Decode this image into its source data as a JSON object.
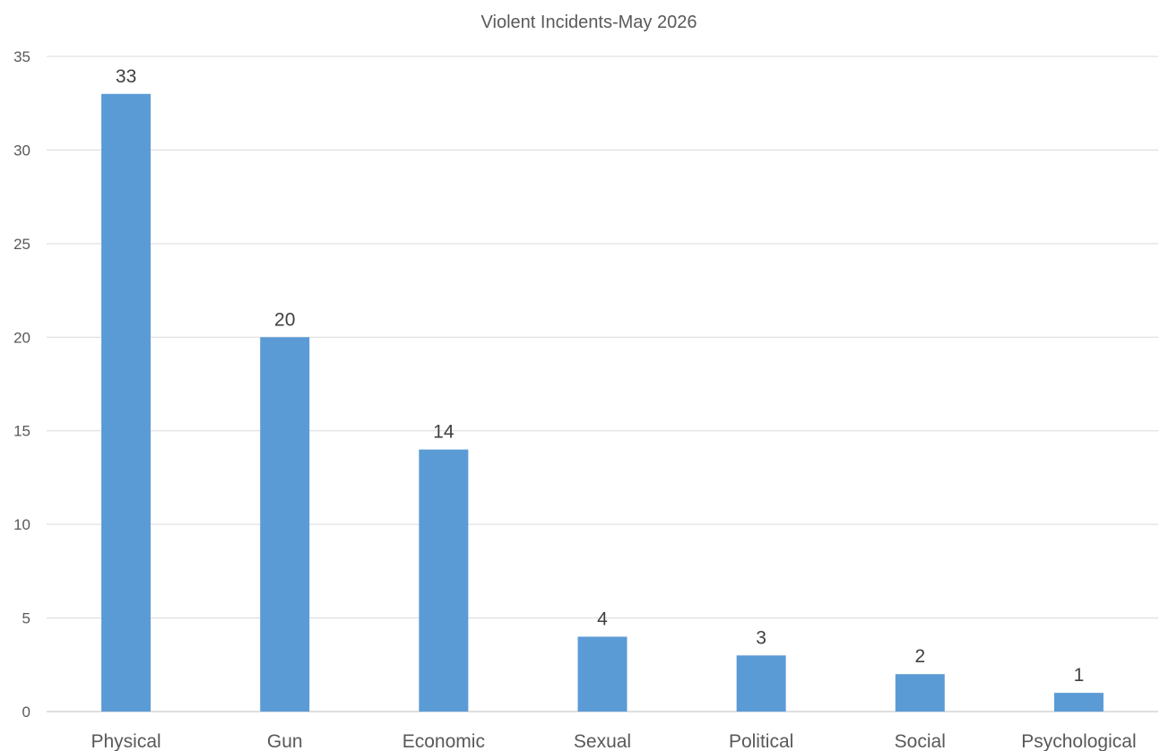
{
  "chart_data": {
    "type": "bar",
    "title": "Violent Incidents-May 2026",
    "categories": [
      "Physical",
      "Gun",
      "Economic",
      "Sexual",
      "Political",
      "Social",
      "Psychological"
    ],
    "values": [
      33,
      20,
      14,
      4,
      3,
      2,
      1
    ],
    "ylim": [
      0,
      35
    ],
    "yticks": [
      "0",
      "5",
      "10",
      "15",
      "20",
      "25",
      "30",
      "35"
    ],
    "xlabel": "",
    "ylabel": "",
    "grid": true,
    "legend": "none",
    "data_labels": true,
    "colors": {
      "bar": "#5B9BD5",
      "grid": "#D9D9D9",
      "axis": "#BFBFBF",
      "text": "#595959"
    }
  }
}
